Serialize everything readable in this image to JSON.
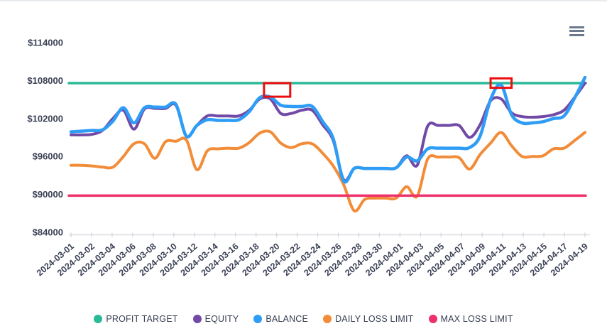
{
  "header": {
    "menu_icon": "hamburger-menu"
  },
  "chart_data": {
    "type": "line",
    "title": "",
    "xlabel": "",
    "ylabel": "",
    "grid": false,
    "legend_position": "bottom",
    "ylim": [
      84000,
      114000
    ],
    "y_tick_values": [
      114000,
      108000,
      102000,
      96000,
      90000,
      84000
    ],
    "y_tick_labels": [
      "$114000",
      "$108000",
      "$102000",
      "$96000",
      "$90000",
      "$84000"
    ],
    "x_tick_labels": [
      "2024-03-01",
      "2024-03-02",
      "2024-03-04",
      "2024-03-06",
      "2024-03-08",
      "2024-03-10",
      "2024-03-12",
      "2024-03-14",
      "2024-03-16",
      "2024-03-18",
      "2024-03-20",
      "2024-03-22",
      "2024-03-24",
      "2024-03-26",
      "2024-03-28",
      "2024-03-30",
      "2024-04-01",
      "2024-04-03",
      "2024-04-05",
      "2024-04-07",
      "2024-04-09",
      "2024-04-11",
      "2024-04-13",
      "2024-04-15",
      "2024-04-17",
      "2024-04-19"
    ],
    "x": [
      "2024-03-01",
      "2024-03-02",
      "2024-03-03",
      "2024-03-04",
      "2024-03-05",
      "2024-03-06",
      "2024-03-07",
      "2024-03-08",
      "2024-03-09",
      "2024-03-10",
      "2024-03-11",
      "2024-03-12",
      "2024-03-13",
      "2024-03-14",
      "2024-03-15",
      "2024-03-16",
      "2024-03-17",
      "2024-03-18",
      "2024-03-19",
      "2024-03-20",
      "2024-03-21",
      "2024-03-22",
      "2024-03-23",
      "2024-03-24",
      "2024-03-25",
      "2024-03-26",
      "2024-03-27",
      "2024-03-28",
      "2024-03-29",
      "2024-03-30",
      "2024-03-31",
      "2024-04-01",
      "2024-04-02",
      "2024-04-03",
      "2024-04-04",
      "2024-04-05",
      "2024-04-06",
      "2024-04-07",
      "2024-04-08",
      "2024-04-09",
      "2024-04-10",
      "2024-04-11",
      "2024-04-12",
      "2024-04-13",
      "2024-04-14",
      "2024-04-15",
      "2024-04-16",
      "2024-04-17",
      "2024-04-18",
      "2024-04-19"
    ],
    "series": [
      {
        "name": "PROFIT TARGET",
        "color": "#2bb997",
        "type": "hline",
        "value": 107600
      },
      {
        "name": "EQUITY",
        "color": "#7149a6",
        "type": "line",
        "values": [
          99400,
          99400,
          99500,
          100100,
          102000,
          103300,
          100300,
          103500,
          103600,
          103600,
          104100,
          99200,
          100900,
          102400,
          102400,
          102400,
          102400,
          103300,
          105100,
          105100,
          102800,
          102800,
          103300,
          103300,
          101000,
          98500,
          92300,
          94100,
          94100,
          94100,
          94100,
          94200,
          96100,
          94600,
          100800,
          100900,
          100900,
          100900,
          99000,
          101000,
          104800,
          105100,
          102900,
          102300,
          102200,
          102300,
          102600,
          103300,
          105300,
          107600
        ]
      },
      {
        "name": "BALANCE",
        "color": "#2f9df5",
        "type": "line",
        "values": [
          99900,
          100000,
          100100,
          100200,
          101600,
          103700,
          101300,
          103700,
          103800,
          103800,
          104250,
          99200,
          100900,
          101800,
          101700,
          101700,
          101800,
          103100,
          105300,
          105400,
          104100,
          103900,
          103900,
          103900,
          101500,
          98800,
          92100,
          94100,
          94100,
          94100,
          94100,
          94200,
          95900,
          95300,
          97200,
          97300,
          97300,
          97300,
          97400,
          99200,
          105000,
          107300,
          102600,
          101300,
          101300,
          101500,
          102000,
          102400,
          105200,
          108500
        ]
      },
      {
        "name": "DAILY LOSS LIMIT",
        "color": "#f28c38",
        "type": "line",
        "values": [
          94600,
          94600,
          94500,
          94300,
          94300,
          96000,
          98000,
          98000,
          95700,
          98300,
          98400,
          98600,
          93900,
          96900,
          97200,
          97300,
          97300,
          98200,
          99700,
          99900,
          98100,
          97400,
          98000,
          98000,
          96500,
          94500,
          91500,
          87400,
          89200,
          89400,
          89400,
          89400,
          91200,
          89700,
          95600,
          95900,
          95900,
          95800,
          94000,
          96300,
          98100,
          99800,
          97700,
          96000,
          96000,
          96100,
          97200,
          97300,
          98500,
          99800
        ]
      },
      {
        "name": "MAX LOSS LIMIT",
        "color": "#ef316b",
        "type": "hline",
        "value": 89800
      }
    ],
    "annotations": [
      {
        "type": "box",
        "color": "#ec0e0e",
        "x_start_index": 18.4,
        "x_end_index": 20.9,
        "y_top": 107600,
        "y_bottom": 105450
      },
      {
        "type": "box",
        "color": "#ec0e0e",
        "x_start_index": 40.0,
        "x_end_index": 42.0,
        "y_top": 108350,
        "y_bottom": 106850
      }
    ]
  }
}
